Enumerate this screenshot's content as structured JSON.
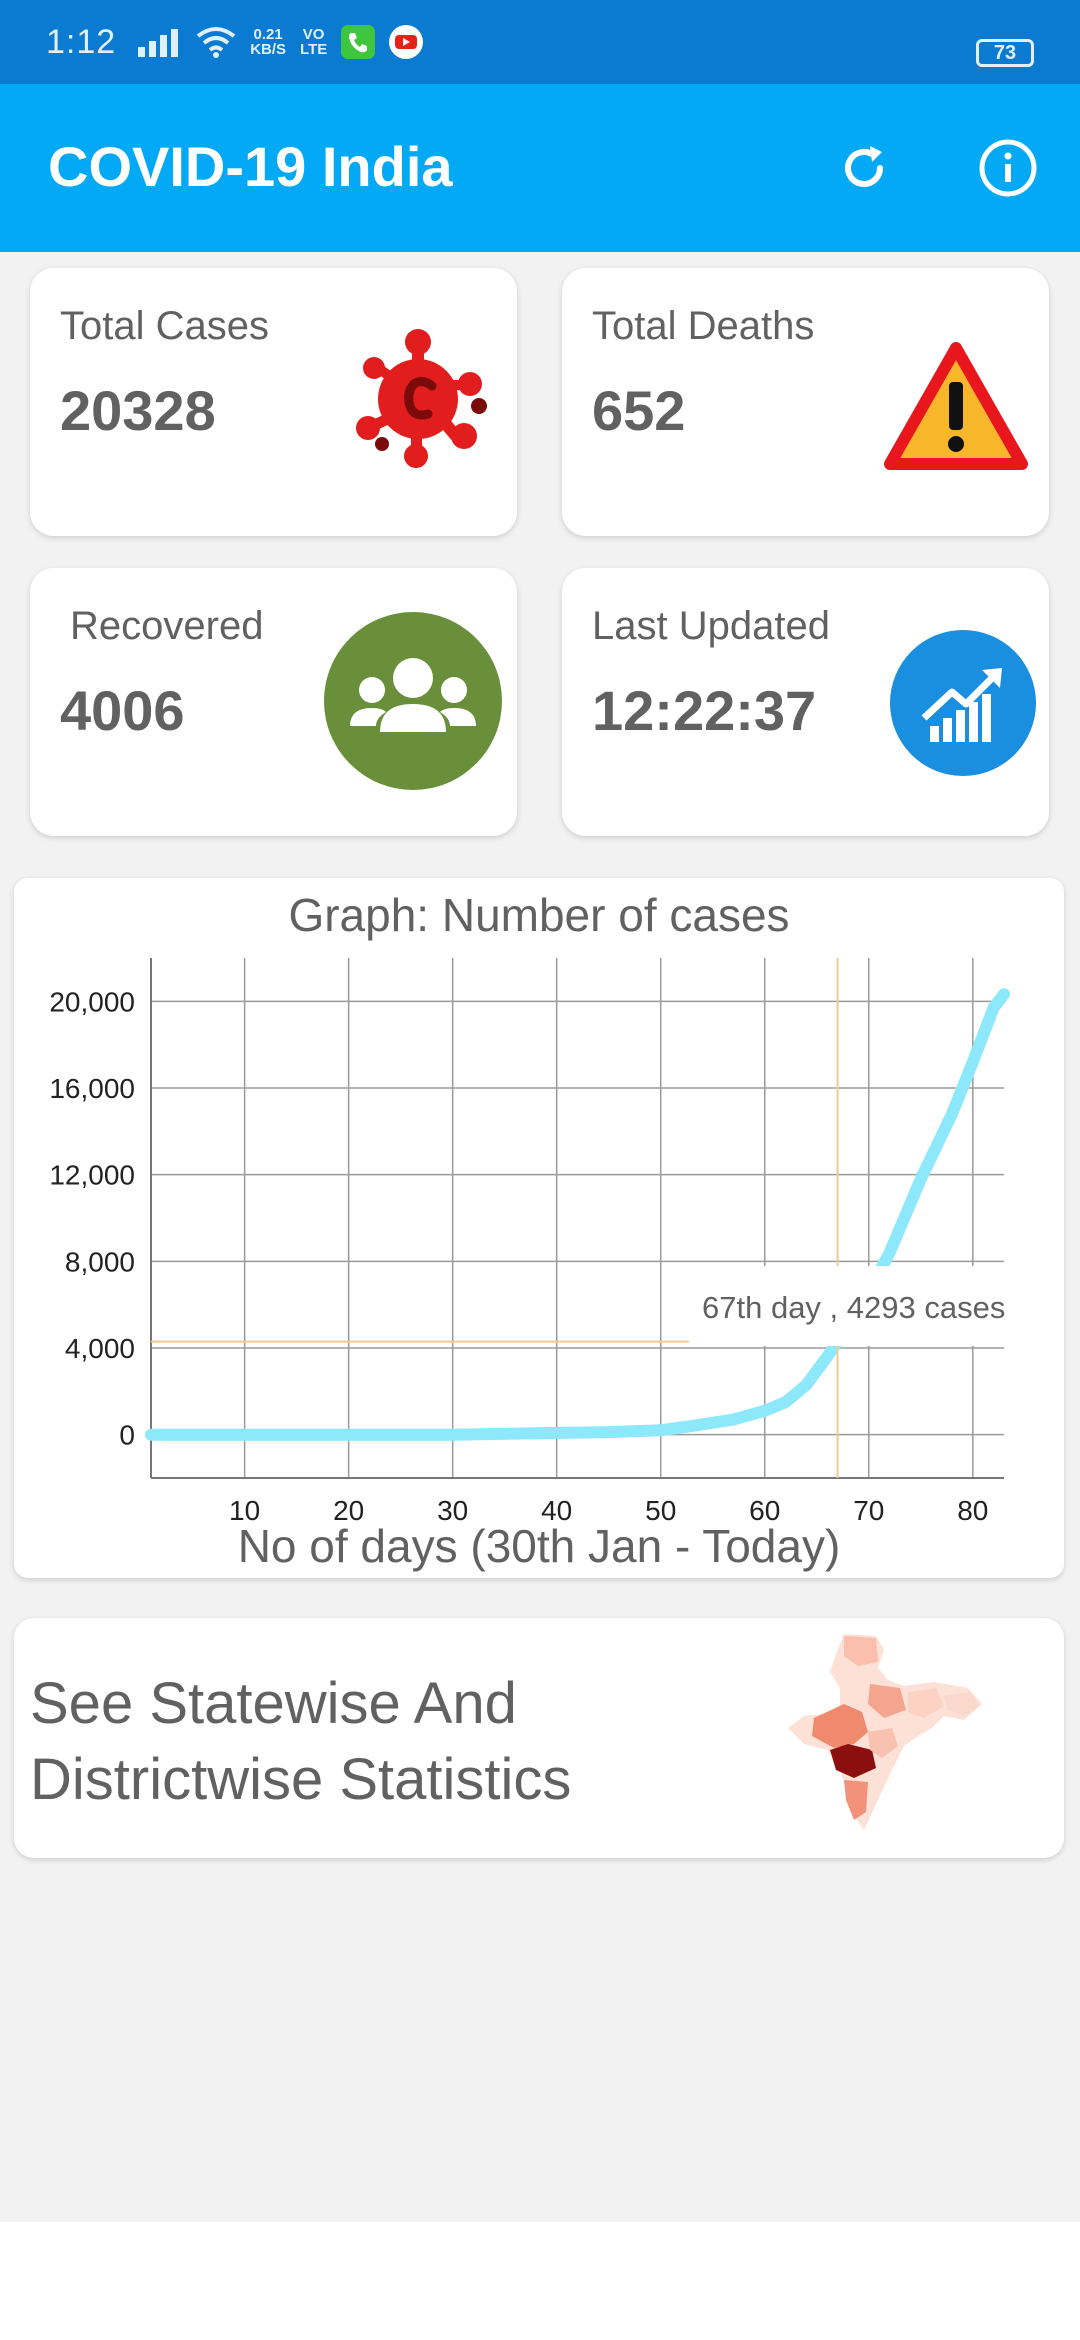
{
  "status_bar": {
    "time": "1:12",
    "net_speed_top": "0.21",
    "net_speed_bottom": "KB/S",
    "volte_top": "VO",
    "volte_bottom": "LTE",
    "battery": "73"
  },
  "app_bar": {
    "title": "COVID-19 India",
    "refresh_icon": "refresh-icon",
    "info_icon": "info-icon"
  },
  "stats": {
    "total_cases": {
      "label": "Total Cases",
      "value": "20328",
      "icon": "virus-icon"
    },
    "total_deaths": {
      "label": "Total Deaths",
      "value": "652",
      "icon": "warning-icon"
    },
    "recovered": {
      "label": "Recovered",
      "value": "4006",
      "icon": "people-icon"
    },
    "last_updated": {
      "label": "Last Updated",
      "value": "12:22:37",
      "icon": "trend-chart-icon"
    }
  },
  "graph": {
    "title": "Graph: Number of cases",
    "tooltip": "67th day , 4293 cases",
    "highlight": {
      "x": 67,
      "y": 4293
    }
  },
  "chart_data": {
    "type": "line",
    "title": "Graph: Number of cases",
    "xlabel": "No of days (30th Jan - Today)",
    "ylabel": "",
    "xlim": [
      1,
      83
    ],
    "ylim": [
      -2000,
      22000
    ],
    "xticks": [
      "10",
      "20",
      "30",
      "40",
      "50",
      "60",
      "70",
      "80"
    ],
    "xtick_values": [
      10,
      20,
      30,
      40,
      50,
      60,
      70,
      80
    ],
    "yticks": [
      "0",
      "4,000",
      "8,000",
      "12,000",
      "16,000",
      "20,000"
    ],
    "ytick_values": [
      0,
      4000,
      8000,
      12000,
      16000,
      20000
    ],
    "grid": true,
    "line_color": "#8ee8fb",
    "x": [
      1,
      10,
      20,
      30,
      40,
      45,
      50,
      53,
      57,
      60,
      62,
      64,
      66,
      67,
      70,
      72,
      75,
      78,
      80,
      82,
      83
    ],
    "y": [
      0,
      0,
      0,
      0,
      80,
      120,
      200,
      400,
      700,
      1100,
      1500,
      2300,
      3600,
      4293,
      6600,
      8400,
      11800,
      14800,
      17200,
      19700,
      20328
    ]
  },
  "statewise": {
    "text_line1": "See Statewise And",
    "text_line2": "Districtwise Statistics",
    "icon": "india-map-icon"
  }
}
